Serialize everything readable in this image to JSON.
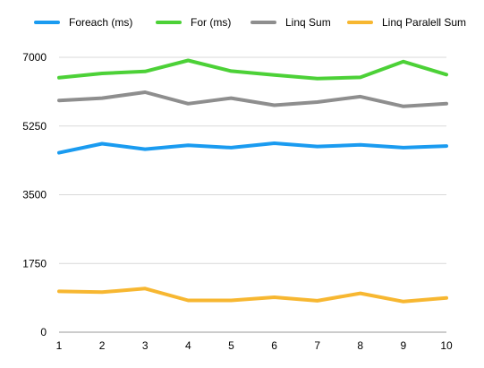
{
  "chart_data": {
    "type": "line",
    "title": "",
    "xlabel": "",
    "ylabel": "",
    "x": [
      1,
      2,
      3,
      4,
      5,
      6,
      7,
      8,
      9,
      10
    ],
    "ylim": [
      0,
      7000
    ],
    "yticks": [
      0,
      1750,
      3500,
      5250,
      7000
    ],
    "grid": "horizontal",
    "legend_position": "top",
    "series": [
      {
        "name": "Foreach (ms)",
        "color": "#1a9bf0",
        "values": [
          4570,
          4800,
          4660,
          4760,
          4700,
          4810,
          4730,
          4770,
          4700,
          4740
        ]
      },
      {
        "name": "For (ms)",
        "color": "#4cd137",
        "values": [
          6480,
          6590,
          6640,
          6920,
          6650,
          6550,
          6460,
          6490,
          6890,
          6560
        ]
      },
      {
        "name": "Linq Sum",
        "color": "#8e8e8e",
        "values": [
          5900,
          5960,
          6110,
          5820,
          5960,
          5780,
          5860,
          6000,
          5750,
          5820
        ]
      },
      {
        "name": "Linq Paralell Sum",
        "color": "#f7b731",
        "values": [
          1040,
          1020,
          1110,
          810,
          810,
          890,
          800,
          990,
          780,
          870
        ]
      }
    ]
  }
}
